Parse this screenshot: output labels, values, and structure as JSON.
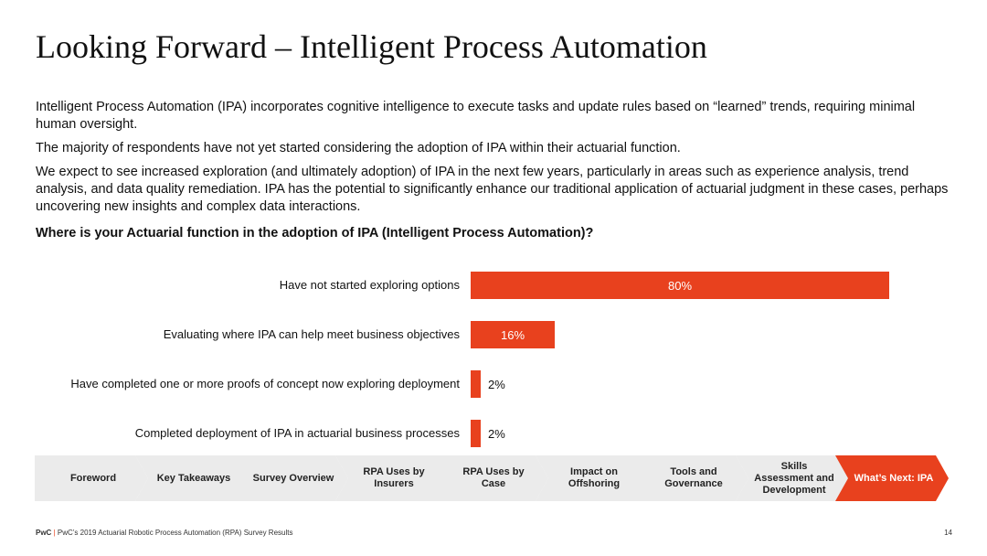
{
  "title": "Looking Forward – Intelligent Process Automation",
  "paragraphs": [
    "Intelligent Process Automation (IPA) incorporates cognitive intelligence to execute tasks and update rules based on “learned” trends, requiring minimal human oversight.",
    "The majority of respondents have not yet started considering the adoption of IPA within their actuarial function.",
    "We expect to see increased exploration (and ultimately adoption) of IPA in the next few years, particularly in areas such as experience analysis, trend analysis, and data quality remediation. IPA has the potential to significantly enhance our traditional application of actuarial judgment in these cases, perhaps uncovering new insights and complex data interactions."
  ],
  "question": "Where is your Actuarial function in the adoption of IPA (Intelligent Process Automation)?",
  "chart_data": {
    "type": "bar",
    "orientation": "horizontal",
    "categories": [
      "Have not started exploring options",
      "Evaluating where IPA can help meet business objectives",
      "Have completed one or more proofs of concept now exploring deployment",
      "Completed deployment of IPA in actuarial business processes"
    ],
    "values": [
      80,
      16,
      2,
      2
    ],
    "value_labels": [
      "80%",
      "16%",
      "2%",
      "2%"
    ],
    "xlim": [
      0,
      100
    ],
    "bar_color": "#e8411e"
  },
  "nav": {
    "items": [
      {
        "label": "Foreword",
        "active": false
      },
      {
        "label": "Key Takeaways",
        "active": false
      },
      {
        "label": "Survey Overview",
        "active": false
      },
      {
        "label": "RPA Uses by Insurers",
        "active": false
      },
      {
        "label": "RPA Uses by Case",
        "active": false
      },
      {
        "label": "Impact on Offshoring",
        "active": false
      },
      {
        "label": "Tools and Governance",
        "active": false
      },
      {
        "label": "Skills Assessment and Development",
        "active": false
      },
      {
        "label": "What’s Next: IPA",
        "active": true
      }
    ]
  },
  "footer": {
    "brand": "PwC",
    "separator": "|",
    "text": "PwC’s 2019 Actuarial Robotic Process Automation (RPA) Survey Results",
    "page_number": "14"
  },
  "colors": {
    "accent": "#e8411e",
    "nav_inactive": "#ebebeb"
  }
}
